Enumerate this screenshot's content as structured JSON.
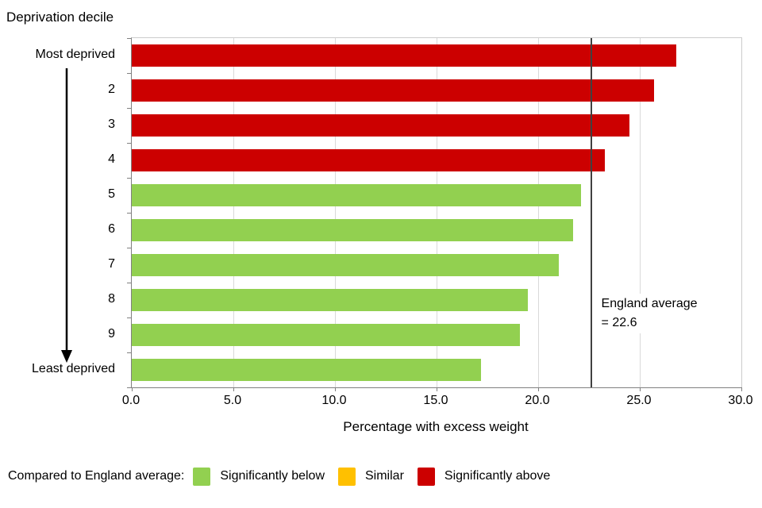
{
  "title": "Deprivation decile",
  "chart_data": {
    "type": "bar",
    "orientation": "horizontal",
    "categories": [
      "Most deprived",
      "2",
      "3",
      "4",
      "5",
      "6",
      "7",
      "8",
      "9",
      "Least deprived"
    ],
    "values": [
      26.8,
      25.7,
      24.5,
      23.3,
      22.1,
      21.7,
      21.0,
      19.5,
      19.1,
      17.2
    ],
    "bar_status": [
      "above",
      "above",
      "above",
      "above",
      "below",
      "below",
      "below",
      "below",
      "below",
      "below"
    ],
    "xlabel": "Percentage with excess weight",
    "ylabel": "Deprivation decile",
    "xlim": [
      0,
      30
    ],
    "x_tick_values": [
      0,
      5,
      10,
      15,
      20,
      25,
      30
    ],
    "x_tick_labels": [
      "0.0",
      "5.0",
      "10.0",
      "15.0",
      "20.0",
      "25.0",
      "30.0"
    ],
    "grid": "vertical",
    "england_average": 22.6,
    "annotation": {
      "line1": "England average",
      "line2": "= 22.6"
    },
    "colors": {
      "below": "#92D050",
      "similar": "#FFC000",
      "above": "#CC0000",
      "average_line": "#404040",
      "gridline": "#D9D9D9",
      "axis": "#808080"
    }
  },
  "legend": {
    "label": "Compared to England average:",
    "items": [
      {
        "key": "below",
        "label": "Significantly below",
        "color": "#92D050"
      },
      {
        "key": "similar",
        "label": "Similar",
        "color": "#FFC000"
      },
      {
        "key": "above",
        "label": "Significantly above",
        "color": "#CC0000"
      }
    ]
  }
}
